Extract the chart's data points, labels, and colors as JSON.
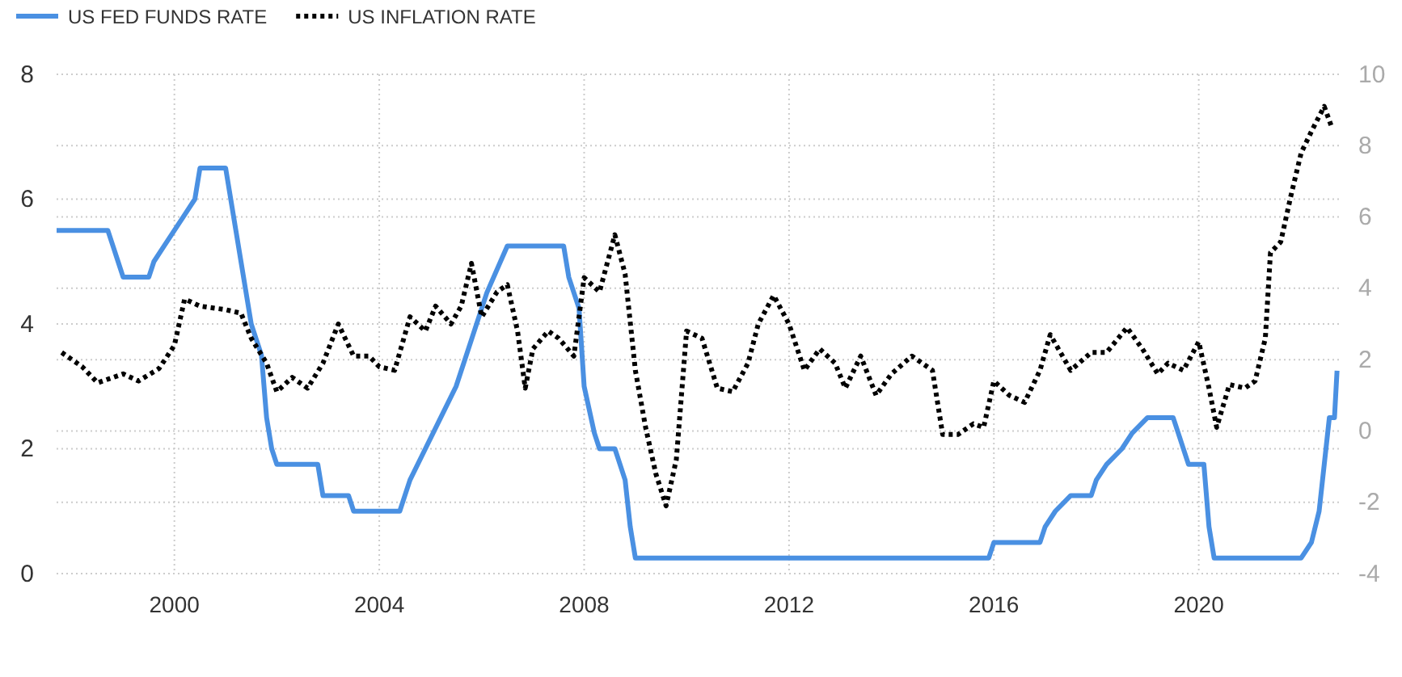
{
  "chart_data": {
    "type": "line",
    "xlim": [
      1997.7,
      2022.8
    ],
    "xticks": [
      2000,
      2004,
      2008,
      2012,
      2016,
      2020
    ],
    "ylim": [
      0,
      8
    ],
    "yticks": [
      0,
      2,
      4,
      6,
      8
    ],
    "y2lim": [
      -4,
      10
    ],
    "y2ticks": [
      -4,
      -2,
      0,
      2,
      4,
      6,
      8,
      10
    ],
    "grid": true,
    "legend": "top left",
    "marker": "none",
    "series": [
      {
        "name": "US FED FUNDS RATE",
        "color": "#4a90e2",
        "line_style": "solid",
        "x": [
          1997.7,
          1998.7,
          1998.8,
          1998.9,
          1999.0,
          1999.5,
          1999.6,
          1999.8,
          2000.0,
          2000.2,
          2000.4,
          2000.5,
          2001.0,
          2001.1,
          2001.2,
          2001.3,
          2001.4,
          2001.5,
          2001.6,
          2001.7,
          2001.8,
          2001.9,
          2002.0,
          2002.8,
          2002.9,
          2003.4,
          2003.5,
          2004.4,
          2004.5,
          2004.6,
          2004.9,
          2005.2,
          2005.5,
          2005.8,
          2006.1,
          2006.5,
          2007.6,
          2007.7,
          2007.9,
          2008.0,
          2008.2,
          2008.3,
          2008.6,
          2008.8,
          2008.9,
          2009.0,
          2015.9,
          2016.0,
          2016.9,
          2017.0,
          2017.2,
          2017.5,
          2017.9,
          2018.0,
          2018.2,
          2018.5,
          2018.7,
          2019.0,
          2019.5,
          2019.6,
          2019.8,
          2020.1,
          2020.2,
          2020.3,
          2022.0,
          2022.2,
          2022.35,
          2022.45,
          2022.55,
          2022.65,
          2022.7
        ],
        "values": [
          5.5,
          5.5,
          5.25,
          5.0,
          4.75,
          4.75,
          5.0,
          5.25,
          5.5,
          5.75,
          6.0,
          6.5,
          6.5,
          6.0,
          5.5,
          5.0,
          4.5,
          4.0,
          3.75,
          3.5,
          2.5,
          2.0,
          1.75,
          1.75,
          1.25,
          1.25,
          1.0,
          1.0,
          1.25,
          1.5,
          2.0,
          2.5,
          3.0,
          3.75,
          4.5,
          5.25,
          5.25,
          4.75,
          4.25,
          3.0,
          2.25,
          2.0,
          2.0,
          1.5,
          0.75,
          0.25,
          0.25,
          0.5,
          0.5,
          0.75,
          1.0,
          1.25,
          1.25,
          1.5,
          1.75,
          2.0,
          2.25,
          2.5,
          2.5,
          2.25,
          1.75,
          1.75,
          0.75,
          0.25,
          0.25,
          0.5,
          1.0,
          1.75,
          2.5,
          2.5,
          3.25
        ]
      },
      {
        "name": "US INFLATION RATE",
        "color": "#000000",
        "line_style": "dotted",
        "axis": "y2",
        "x": [
          1997.8,
          1998.2,
          1998.5,
          1999.0,
          1999.3,
          1999.7,
          2000.0,
          2000.2,
          2000.5,
          2001.0,
          2001.3,
          2001.5,
          2001.8,
          2002.0,
          2002.3,
          2002.6,
          2002.9,
          2003.2,
          2003.5,
          2003.8,
          2004.0,
          2004.3,
          2004.6,
          2004.9,
          2005.1,
          2005.4,
          2005.6,
          2005.8,
          2006.0,
          2006.3,
          2006.5,
          2006.7,
          2006.85,
          2007.0,
          2007.3,
          2007.5,
          2007.8,
          2008.0,
          2008.3,
          2008.6,
          2008.8,
          2009.0,
          2009.2,
          2009.4,
          2009.6,
          2009.8,
          2010.0,
          2010.3,
          2010.6,
          2010.9,
          2011.2,
          2011.4,
          2011.7,
          2012.0,
          2012.3,
          2012.6,
          2012.9,
          2013.1,
          2013.4,
          2013.7,
          2014.0,
          2014.4,
          2014.8,
          2015.0,
          2015.3,
          2015.6,
          2015.8,
          2016.0,
          2016.3,
          2016.6,
          2016.9,
          2017.1,
          2017.5,
          2017.9,
          2018.2,
          2018.6,
          2018.9,
          2019.2,
          2019.4,
          2019.7,
          2020.0,
          2020.2,
          2020.35,
          2020.6,
          2020.9,
          2021.1,
          2021.3,
          2021.4,
          2021.6,
          2021.8,
          2022.0,
          2022.2,
          2022.45,
          2022.6
        ],
        "values": [
          2.2,
          1.8,
          1.35,
          1.6,
          1.4,
          1.75,
          2.4,
          3.7,
          3.5,
          3.4,
          3.3,
          2.6,
          1.9,
          1.1,
          1.5,
          1.2,
          1.9,
          3.0,
          2.1,
          2.1,
          1.8,
          1.7,
          3.2,
          2.8,
          3.5,
          3.0,
          3.5,
          4.7,
          3.2,
          3.9,
          4.1,
          2.8,
          1.2,
          2.3,
          2.8,
          2.6,
          2.1,
          4.3,
          3.9,
          5.5,
          4.4,
          1.7,
          0.1,
          -1.2,
          -2.1,
          -0.8,
          2.8,
          2.6,
          1.2,
          1.1,
          1.9,
          3.0,
          3.8,
          3.0,
          1.7,
          2.3,
          1.9,
          1.2,
          2.1,
          1.0,
          1.6,
          2.1,
          1.7,
          -0.1,
          -0.1,
          0.2,
          0.1,
          1.4,
          1.0,
          0.8,
          1.7,
          2.7,
          1.7,
          2.2,
          2.2,
          2.9,
          2.3,
          1.6,
          1.9,
          1.7,
          2.5,
          1.2,
          0.1,
          1.3,
          1.2,
          1.4,
          2.6,
          5.0,
          5.3,
          6.6,
          7.8,
          8.4,
          9.1,
          8.5
        ]
      }
    ]
  }
}
